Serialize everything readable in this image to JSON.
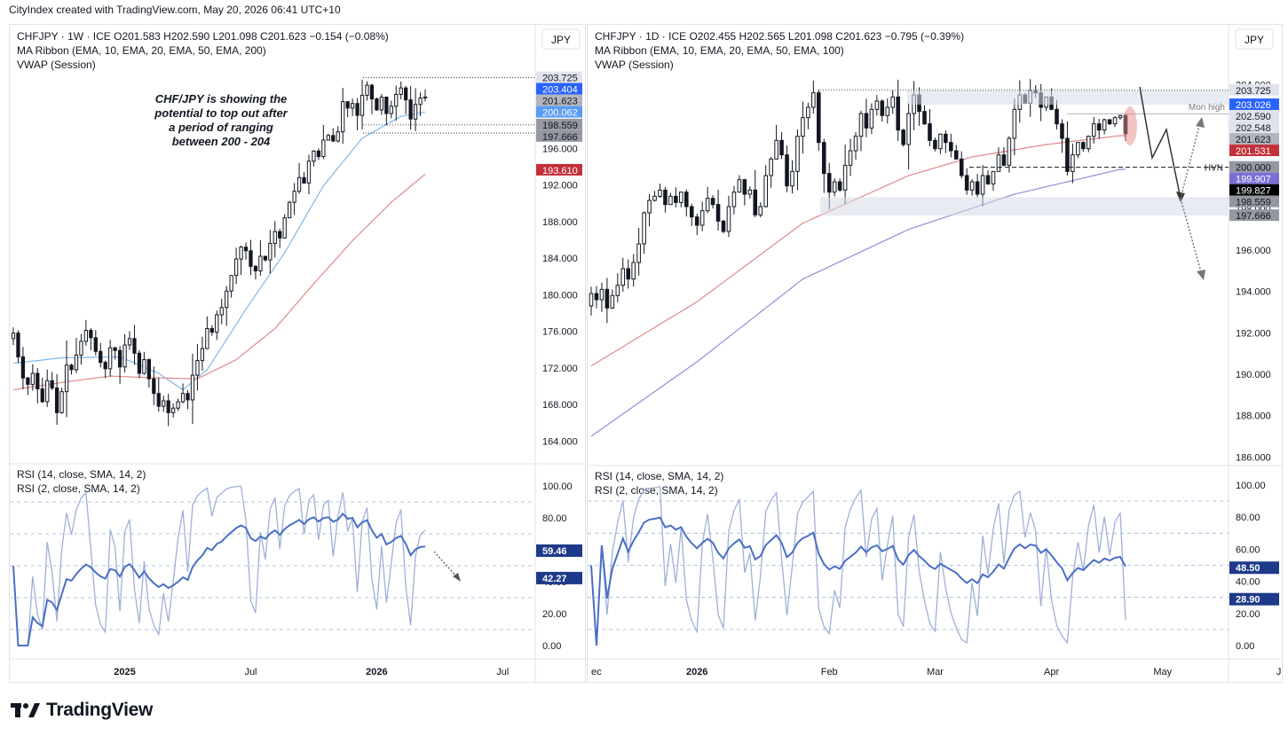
{
  "header": {
    "credit": "CityIndex created with TradingView.com, May 20, 2026 06:41 UTC+10"
  },
  "footer": {
    "brand": "TradingView"
  },
  "colors": {
    "up": "#131722",
    "down": "#131722",
    "ema_fast": "#7fb7e8",
    "ema_slow_red": "#e08a8a",
    "ema_slow_blue": "#8f8fd8",
    "rsi_main": "#4a6fc4",
    "rsi_fast": "#9fb0d8"
  },
  "chart_data": [
    {
      "type": "candlestick",
      "id": "weekly",
      "currency": "JPY",
      "title": "CHFJPY · 1W · ICE",
      "ohlc_text": {
        "O": "O201.583",
        "H": "H202.590",
        "L": "L201.098",
        "C": "C201.623",
        "chg": "−0.154 (−0.08%)"
      },
      "indicator_lines": [
        "MA Ribbon (EMA, 10, EMA, 20, EMA, 50, EMA, 200)",
        "VWAP (Session)"
      ],
      "annotation": [
        "CHF/JPY is showing the",
        "potential to top out after",
        "a period of ranging",
        "between 200 - 204"
      ],
      "ylim": [
        162.0,
        209.5
      ],
      "y_ticks": [
        "164.000",
        "168.000",
        "172.000",
        "176.000",
        "180.000",
        "184.000",
        "188.000",
        "192.000",
        "196.000"
      ],
      "x_ticks": [
        {
          "label": "2025",
          "x": 23
        },
        {
          "label": "Jul",
          "x": 49
        },
        {
          "label": "2026",
          "x": 75
        },
        {
          "label": "Jul",
          "x": 101
        }
      ],
      "price_labels": [
        {
          "text": "203.725",
          "value": 203.725,
          "bg": "#e0e3eb",
          "fg": "#131722"
        },
        {
          "text": "203.404",
          "value": 203.404,
          "bg": "#2962ff",
          "fg": "#ffffff"
        },
        {
          "text": "201.623",
          "value": 201.623,
          "bg": "#b2b5be",
          "fg": "#131722"
        },
        {
          "text": "200.062",
          "value": 200.062,
          "bg": "#5b9cf6",
          "fg": "#ffffff"
        },
        {
          "text": "198.559",
          "value": 198.559,
          "bg": "#9598a1",
          "fg": "#131722"
        },
        {
          "text": "197.666",
          "value": 197.666,
          "bg": "#9598a1",
          "fg": "#131722"
        },
        {
          "text": "193.610",
          "value": 193.61,
          "bg": "#c2303a",
          "fg": "#ffffff"
        }
      ],
      "closes": [
        175.8,
        173.2,
        170.9,
        170.2,
        171.4,
        169.7,
        168.3,
        170.6,
        169.8,
        167.1,
        169.4,
        172.3,
        171.8,
        173.4,
        174.9,
        176.1,
        175.3,
        173.8,
        172.6,
        171.9,
        174.2,
        173.9,
        172.1,
        174.5,
        175.2,
        173.6,
        171.4,
        172.9,
        170.8,
        169.2,
        167.8,
        168.4,
        167.1,
        167.6,
        168.3,
        169.2,
        168.5,
        171.2,
        172.8,
        174.1,
        176.3,
        175.9,
        177.8,
        178.6,
        180.4,
        182.1,
        183.9,
        185.2,
        184.8,
        183.1,
        182.6,
        184.2,
        183.8,
        185.6,
        186.9,
        186.2,
        188.4,
        190.1,
        191.3,
        192.8,
        192.2,
        194.6,
        195.7,
        195.1,
        196.9,
        197.4,
        196.8,
        197.8,
        201.1,
        200.4,
        200.9,
        199.6,
        201.8,
        202.9,
        201.4,
        200.2,
        201.6,
        199.8,
        200.6,
        201.9,
        202.6,
        201.3,
        199.2,
        200.8,
        201.5,
        201.62
      ],
      "ema_fast": {
        "start_val": 172.5,
        "anchors": [
          [
            0,
            172.5
          ],
          [
            10,
            173.1
          ],
          [
            22,
            173.2
          ],
          [
            30,
            171.4
          ],
          [
            35,
            169.6
          ],
          [
            40,
            171.8
          ],
          [
            48,
            178.4
          ],
          [
            56,
            184.6
          ],
          [
            64,
            191.9
          ],
          [
            72,
            197.1
          ],
          [
            80,
            199.5
          ],
          [
            86,
            200.06
          ]
        ]
      },
      "ema_slow": {
        "anchors": [
          [
            0,
            169.6
          ],
          [
            10,
            170.4
          ],
          [
            20,
            171.1
          ],
          [
            30,
            170.9
          ],
          [
            38,
            170.8
          ],
          [
            46,
            172.9
          ],
          [
            54,
            176.3
          ],
          [
            62,
            181.2
          ],
          [
            70,
            185.9
          ],
          [
            78,
            190.1
          ],
          [
            86,
            193.61
          ]
        ]
      },
      "rsi": {
        "legend": [
          "RSI (14, close, SMA, 14, 2)",
          "RSI (2, close, SMA, 14, 2)"
        ],
        "y_ticks": [
          "0.00",
          "20.00",
          "40.00",
          "60.00",
          "80.00",
          "100.00"
        ],
        "labels": [
          {
            "text": "59.46",
            "value": 59.46,
            "bg": "#1e3a8a"
          },
          {
            "text": "42.27",
            "value": 42.27,
            "bg": "#1e3a8a"
          }
        ],
        "bands": [
          70,
          50,
          30
        ]
      }
    },
    {
      "type": "candlestick",
      "id": "daily",
      "currency": "JPY",
      "title": "CHFJPY · 1D · ICE",
      "ohlc_text": {
        "O": "O202.455",
        "H": "H202.565",
        "L": "L201.098",
        "C": "C201.623",
        "chg": "−0.795 (−0.39%)"
      },
      "indicator_lines": [
        "MA Ribbon (EMA, 10, EMA, 20, EMA, 50, EMA, 100)",
        "VWAP (Session)"
      ],
      "ylim": [
        185.8,
        205.6
      ],
      "y_ticks": [
        "186.000",
        "188.000",
        "190.000",
        "192.000",
        "194.000",
        "196.000",
        "198.000",
        "200.000",
        "202.000",
        "204.000"
      ],
      "x_ticks": [
        {
          "label": "ec",
          "x": 0
        },
        {
          "label": "2026",
          "x": 20
        },
        {
          "label": "Feb",
          "x": 45
        },
        {
          "label": "Mar",
          "x": 65
        },
        {
          "label": "Apr",
          "x": 87
        },
        {
          "label": "May",
          "x": 108
        },
        {
          "label": "Jun",
          "x": 131
        }
      ],
      "annotations": [
        {
          "text": "Mon high",
          "value": 202.59
        },
        {
          "text": "HVN",
          "value": 200.0
        }
      ],
      "price_labels": [
        {
          "text": "203.725",
          "value": 203.725,
          "bg": "#e0e3eb",
          "fg": "#131722"
        },
        {
          "text": "203.026",
          "value": 203.026,
          "bg": "#2962ff",
          "fg": "#ffffff"
        },
        {
          "text": "202.590",
          "value": 202.59,
          "bg": "#e0e3eb",
          "fg": "#131722"
        },
        {
          "text": "202.548",
          "value": 202.548,
          "bg": "#e0e3eb",
          "fg": "#131722"
        },
        {
          "text": "201.623",
          "value": 201.623,
          "bg": "#b2b5be",
          "fg": "#131722"
        },
        {
          "text": "201.531",
          "value": 201.531,
          "bg": "#c2303a",
          "fg": "#ffffff"
        },
        {
          "text": "200.000",
          "value": 200.0,
          "bg": "#9598a1",
          "fg": "#131722"
        },
        {
          "text": "199.907",
          "value": 199.907,
          "bg": "#7b6fd6",
          "fg": "#ffffff"
        },
        {
          "text": "199.827",
          "value": 199.827,
          "bg": "#000000",
          "fg": "#ffffff"
        },
        {
          "text": "198.559",
          "value": 198.559,
          "bg": "#9598a1",
          "fg": "#131722"
        },
        {
          "text": "197.666",
          "value": 197.666,
          "bg": "#9598a1",
          "fg": "#131722"
        }
      ],
      "closes": [
        193.9,
        193.6,
        194.1,
        193.2,
        193.8,
        194.3,
        195.1,
        194.6,
        195.4,
        196.3,
        197.8,
        198.4,
        198.6,
        198.9,
        198.2,
        198.6,
        198.3,
        198.8,
        198.1,
        197.6,
        197.2,
        197.9,
        198.5,
        198.2,
        197.4,
        196.9,
        198.1,
        198.8,
        199.4,
        198.7,
        198.9,
        197.7,
        198.1,
        199.6,
        200.4,
        201.3,
        200.6,
        199.1,
        199.8,
        201.5,
        202.4,
        202.9,
        203.6,
        201.2,
        199.7,
        198.8,
        199.3,
        198.9,
        200.1,
        200.8,
        201.5,
        202.6,
        201.9,
        202.8,
        203.2,
        202.5,
        202.9,
        203.4,
        201.8,
        201.1,
        202.6,
        203.5,
        202.7,
        202.1,
        201.3,
        200.9,
        201.6,
        201.2,
        200.8,
        200.4,
        199.6,
        198.9,
        199.3,
        198.7,
        199.6,
        199.2,
        199.8,
        200.6,
        200.1,
        201.4,
        202.8,
        203.5,
        203.1,
        203.7,
        203.6,
        202.9,
        203.4,
        202.8,
        202.1,
        201.4,
        199.8,
        200.6,
        201.2,
        200.9,
        201.5,
        202.1,
        201.8,
        202.3,
        202.1,
        202.4,
        202.5,
        201.62
      ],
      "ema100": {
        "anchors": [
          [
            0,
            187.0
          ],
          [
            20,
            190.6
          ],
          [
            40,
            194.6
          ],
          [
            60,
            197.0
          ],
          [
            80,
            198.7
          ],
          [
            100,
            199.9
          ]
        ]
      },
      "ema50": {
        "anchors": [
          [
            0,
            190.4
          ],
          [
            20,
            193.5
          ],
          [
            40,
            197.3
          ],
          [
            60,
            199.6
          ],
          [
            72,
            200.5
          ],
          [
            86,
            201.1
          ],
          [
            100,
            201.53
          ]
        ]
      },
      "rsi": {
        "legend": [
          "RSI (14, close, SMA, 14, 2)",
          "RSI (2, close, SMA, 14, 2)"
        ],
        "y_ticks": [
          "0.00",
          "20.00",
          "40.00",
          "60.00",
          "80.00",
          "100.00"
        ],
        "labels": [
          {
            "text": "48.50",
            "value": 48.5,
            "bg": "#1e3a8a"
          },
          {
            "text": "28.90",
            "value": 28.9,
            "bg": "#1e3a8a"
          }
        ],
        "bands": [
          70,
          50,
          30
        ]
      }
    }
  ]
}
